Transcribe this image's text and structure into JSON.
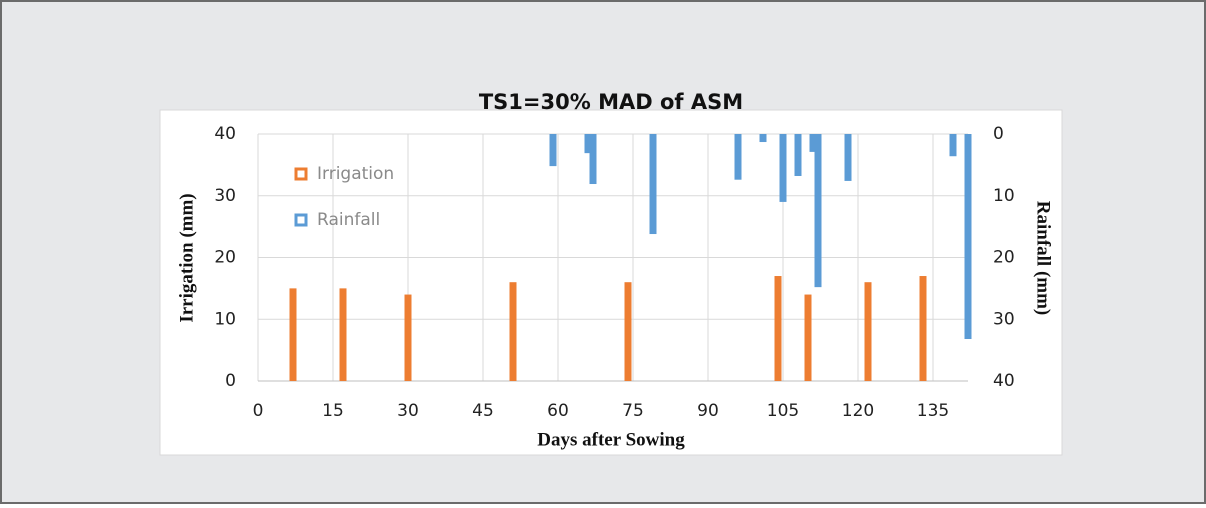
{
  "chart_data": {
    "type": "bar",
    "title": "TS1=30% MAD of ASM",
    "xlabel": "Days after Sowing",
    "ylabel": "Irrigation (mm)",
    "y2label": "Rainfall (mm)",
    "xlim": [
      0,
      143
    ],
    "xticks": [
      0,
      15,
      30,
      45,
      60,
      75,
      90,
      105,
      120,
      135
    ],
    "ylim": [
      0,
      40
    ],
    "yticks": [
      0,
      10,
      20,
      30,
      40
    ],
    "y2lim": [
      0,
      40
    ],
    "y2ticks": [
      0,
      10,
      20,
      30,
      40
    ],
    "y2_inverted": true,
    "grid": true,
    "legend": "upper left",
    "series": [
      {
        "name": "Irrigation",
        "color": "#ed7d31",
        "x": [
          7,
          17,
          30,
          51,
          74,
          104,
          110,
          122,
          133
        ],
        "values": [
          15,
          15,
          14,
          16,
          16,
          17,
          14,
          16,
          17
        ]
      },
      {
        "name": "Rainfall",
        "color": "#5b9bd5",
        "axis": "y2",
        "x": [
          59,
          66,
          67,
          79,
          96,
          101,
          105,
          108,
          111,
          112,
          118,
          139,
          142
        ],
        "values": [
          5.2,
          3.1,
          8.1,
          16.2,
          7.4,
          1.3,
          11,
          6.8,
          2.9,
          24.8,
          7.6,
          3.6,
          33.2
        ]
      }
    ]
  }
}
